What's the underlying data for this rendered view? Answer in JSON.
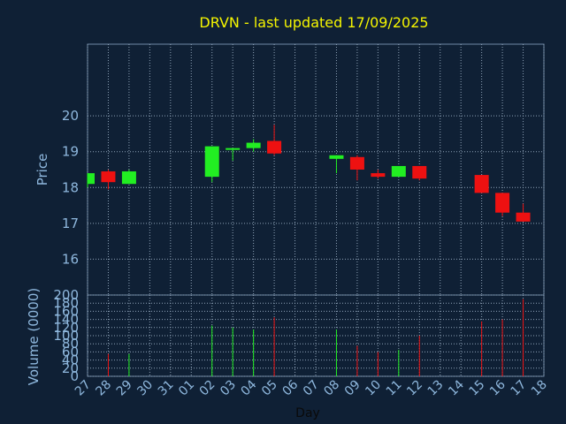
{
  "chart_data": [
    {
      "type": "candlestick",
      "title": "DRVN - last updated 17/09/2025",
      "ylabel": "Price",
      "ylim": [
        15,
        22
      ],
      "yticks": [
        16,
        17,
        18,
        19,
        20
      ],
      "grid": true,
      "x": [
        "27",
        "28",
        "29",
        "30",
        "31",
        "01",
        "02",
        "03",
        "04",
        "05",
        "06",
        "07",
        "08",
        "09",
        "10",
        "11",
        "12",
        "13",
        "14",
        "15",
        "16",
        "17",
        "18"
      ],
      "candles": [
        {
          "day": "27",
          "open": 18.1,
          "high": 18.4,
          "low": 18.0,
          "close": 18.4
        },
        {
          "day": "28",
          "open": 18.45,
          "high": 18.5,
          "low": 17.95,
          "close": 18.15
        },
        {
          "day": "29",
          "open": 18.1,
          "high": 18.5,
          "low": 18.1,
          "close": 18.45
        },
        {
          "day": "02",
          "open": 18.3,
          "high": 19.15,
          "low": 18.15,
          "close": 19.15
        },
        {
          "day": "03",
          "open": 19.05,
          "high": 19.1,
          "low": 18.75,
          "close": 19.1
        },
        {
          "day": "04",
          "open": 19.1,
          "high": 19.35,
          "low": 19.0,
          "close": 19.25
        },
        {
          "day": "05",
          "open": 19.3,
          "high": 19.75,
          "low": 18.9,
          "close": 18.95
        },
        {
          "day": "08",
          "open": 18.8,
          "high": 18.9,
          "low": 18.4,
          "close": 18.9
        },
        {
          "day": "09",
          "open": 18.85,
          "high": 18.9,
          "low": 18.2,
          "close": 18.5
        },
        {
          "day": "10",
          "open": 18.4,
          "high": 18.5,
          "low": 18.25,
          "close": 18.3
        },
        {
          "day": "11",
          "open": 18.3,
          "high": 18.6,
          "low": 18.3,
          "close": 18.6
        },
        {
          "day": "12",
          "open": 18.6,
          "high": 18.6,
          "low": 18.2,
          "close": 18.25
        },
        {
          "day": "15",
          "open": 18.35,
          "high": 18.35,
          "low": 17.85,
          "close": 17.85
        },
        {
          "day": "16",
          "open": 17.85,
          "high": 17.85,
          "low": 17.2,
          "close": 17.3
        },
        {
          "day": "17",
          "open": 17.3,
          "high": 17.55,
          "low": 17.05,
          "close": 17.05
        }
      ],
      "colors": {
        "up": "#22ee22",
        "down": "#ee1111"
      }
    },
    {
      "type": "bar",
      "xlabel": "Day",
      "ylabel": "Volume (0000)",
      "ylim": [
        0,
        200
      ],
      "yticks": [
        0,
        20,
        40,
        60,
        80,
        100,
        120,
        140,
        160,
        180,
        200
      ],
      "grid": true,
      "x": [
        "27",
        "28",
        "29",
        "30",
        "31",
        "01",
        "02",
        "03",
        "04",
        "05",
        "06",
        "07",
        "08",
        "09",
        "10",
        "11",
        "12",
        "13",
        "14",
        "15",
        "16",
        "17",
        "18"
      ],
      "series": [
        {
          "day": "28",
          "value": 55,
          "direction": "down"
        },
        {
          "day": "29",
          "value": 55,
          "direction": "up"
        },
        {
          "day": "02",
          "value": 125,
          "direction": "up"
        },
        {
          "day": "03",
          "value": 120,
          "direction": "up"
        },
        {
          "day": "04",
          "value": 115,
          "direction": "up"
        },
        {
          "day": "05",
          "value": 145,
          "direction": "down"
        },
        {
          "day": "08",
          "value": 115,
          "direction": "up"
        },
        {
          "day": "09",
          "value": 75,
          "direction": "down"
        },
        {
          "day": "10",
          "value": 60,
          "direction": "down"
        },
        {
          "day": "11",
          "value": 65,
          "direction": "up"
        },
        {
          "day": "12",
          "value": 100,
          "direction": "down"
        },
        {
          "day": "15",
          "value": 135,
          "direction": "down"
        },
        {
          "day": "16",
          "value": 140,
          "direction": "down"
        },
        {
          "day": "17",
          "value": 190,
          "direction": "down"
        }
      ],
      "colors": {
        "up": "#22ee22",
        "down": "#ee1111"
      }
    }
  ]
}
